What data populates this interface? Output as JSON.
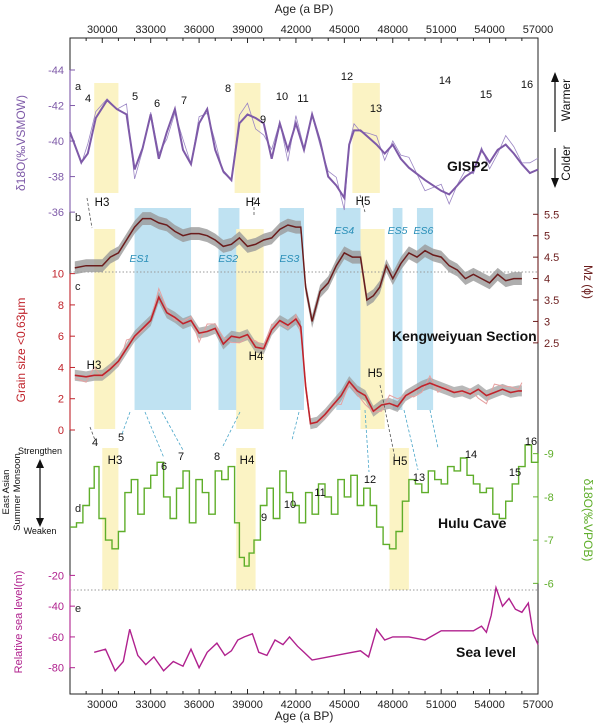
{
  "chart_data": {
    "type": "line",
    "age_axis": {
      "label": "Age (a BP)",
      "range": [
        28000,
        57000
      ],
      "ticks": [
        30000,
        33000,
        36000,
        39000,
        42000,
        45000,
        48000,
        51000,
        54000,
        57000
      ],
      "tick_labels": [
        "30000",
        "33000",
        "36000",
        "39000",
        "42000",
        "45000",
        "48000",
        "51000",
        "54000",
        "57000"
      ]
    },
    "shaded_intervals": {
      "heinrich": [
        {
          "label": "H3",
          "panel_top": [
            29500,
            31000
          ],
          "panel_mid": [
            29500,
            30800
          ],
          "panel_d": [
            30000,
            31000
          ]
        },
        {
          "label": "H4",
          "panel_top": [
            38200,
            39800
          ],
          "panel_mid": [
            38300,
            40000
          ],
          "panel_d": [
            38300,
            39500
          ]
        },
        {
          "label": "H5",
          "panel_top": [
            45500,
            47200
          ],
          "panel_mid": [
            46000,
            47500
          ],
          "panel_d": [
            47800,
            49000
          ]
        }
      ],
      "es": [
        {
          "label": "ES1",
          "range": [
            32000,
            35500
          ]
        },
        {
          "label": "ES2",
          "range": [
            37200,
            38500
          ]
        },
        {
          "label": "ES3",
          "range": [
            41000,
            42500
          ]
        },
        {
          "label": "ES4",
          "range": [
            44500,
            46000
          ]
        },
        {
          "label": "ES5",
          "range": [
            48000,
            48600
          ]
        },
        {
          "label": "ES6",
          "range": [
            49500,
            50500
          ]
        }
      ]
    },
    "panels": [
      {
        "id": "a",
        "name": "GISP2",
        "ylabel": "δ18O(‰VSMOW)",
        "yticks": [
          "-36",
          "-38",
          "-40",
          "-42",
          "-44"
        ],
        "ylim": [
          -44,
          -35.5
        ],
        "inverted": true,
        "right_arrow_labels": [
          "Warmer",
          "Colder"
        ],
        "events": [
          "4",
          "5",
          "6",
          "7",
          "8",
          "9",
          "10",
          "11",
          "12",
          "13",
          "14",
          "15",
          "16"
        ],
        "series_smooth": {
          "x": [
            28000,
            28700,
            29100,
            29600,
            30300,
            30900,
            31500,
            32000,
            32500,
            33000,
            33500,
            34000,
            34500,
            35000,
            35500,
            36000,
            36500,
            37000,
            37500,
            38000,
            38500,
            39000,
            39500,
            40000,
            40500,
            41000,
            41500,
            42000,
            42500,
            43000,
            43500,
            44000,
            44500,
            45000,
            45300,
            45600,
            46000,
            46500,
            47000,
            47500,
            48000,
            48500,
            49000,
            50000,
            51000,
            51500,
            52000,
            52500,
            53000,
            53500,
            54000,
            54500,
            55000,
            55500,
            56000,
            56500,
            57000
          ],
          "y": [
            -40.5,
            -38.8,
            -39.3,
            -41.3,
            -42.3,
            -41.8,
            -41.5,
            -38.4,
            -39.6,
            -41.5,
            -39.0,
            -40.5,
            -41.8,
            -39.5,
            -38.7,
            -41.0,
            -41.8,
            -39.5,
            -38.3,
            -37.8,
            -41.0,
            -41.5,
            -41.3,
            -41.0,
            -39.0,
            -41.0,
            -39.5,
            -41.0,
            -39.5,
            -41.5,
            -40.0,
            -38.0,
            -37.5,
            -36.8,
            -39.8,
            -40.6,
            -40.6,
            -40.2,
            -39.8,
            -39.3,
            -39.8,
            -39.0,
            -38.5,
            -37.8,
            -37.2,
            -37.0,
            -37.5,
            -38.0,
            -38.3,
            -39.5,
            -38.8,
            -39.5,
            -39.8,
            -39.3,
            -38.7,
            -38.2,
            -38.4
          ]
        }
      },
      {
        "id": "b",
        "name": "Kengweiyuan Section",
        "ylabel_right": "Mz (ϕ)",
        "yticks_right": [
          "2.5",
          "3",
          "3.5",
          "4",
          "4.5",
          "5",
          "5.5"
        ],
        "ylim": [
          2.1,
          5.6
        ],
        "series": {
          "x": [
            28300,
            29000,
            29500,
            30000,
            30500,
            31000,
            31500,
            32000,
            32500,
            33000,
            33500,
            34000,
            34500,
            35000,
            35500,
            36000,
            36500,
            37000,
            37500,
            38000,
            38500,
            39000,
            39500,
            40000,
            40500,
            41000,
            41500,
            42000,
            42300,
            42600,
            43000,
            43500,
            44000,
            44500,
            45000,
            45500,
            46000,
            46400,
            46800,
            47200,
            47600,
            48000,
            48500,
            49000,
            49500,
            50000,
            50500,
            51000,
            51500,
            52000,
            52500,
            53000,
            53500,
            54000,
            54500,
            55000,
            55500,
            56000
          ],
          "y": [
            4.25,
            4.3,
            4.3,
            4.3,
            4.5,
            4.6,
            4.9,
            5.2,
            5.4,
            5.4,
            5.3,
            5.25,
            5.1,
            5.0,
            5.05,
            5.05,
            5.0,
            4.9,
            4.75,
            4.8,
            4.95,
            4.75,
            4.8,
            4.9,
            4.95,
            5.15,
            5.25,
            5.2,
            5.2,
            3.8,
            3.0,
            3.7,
            3.9,
            4.3,
            4.6,
            4.5,
            4.5,
            3.5,
            3.6,
            3.8,
            4.3,
            4.0,
            4.35,
            4.6,
            4.5,
            4.65,
            4.55,
            4.5,
            4.3,
            4.2,
            4.0,
            4.1,
            4.0,
            3.9,
            4.1,
            3.95,
            4.0,
            4.0
          ]
        }
      },
      {
        "id": "c",
        "ylabel": "Grain size <0.63μm",
        "yticks": [
          "0",
          "2",
          "4",
          "6",
          "8",
          "10"
        ],
        "ylim": [
          0,
          11
        ],
        "series": {
          "x": [
            28300,
            29000,
            29500,
            30000,
            30500,
            31000,
            31500,
            32000,
            32500,
            33000,
            33500,
            34000,
            34500,
            35000,
            35500,
            36000,
            36500,
            37000,
            37500,
            38000,
            38500,
            39000,
            39500,
            40000,
            40500,
            41000,
            41500,
            42000,
            42300,
            42600,
            42900,
            43300,
            43800,
            44300,
            44800,
            45300,
            45800,
            46300,
            46800,
            47300,
            47800,
            48300,
            48800,
            49300,
            49800,
            50300,
            50800,
            51300,
            51800,
            52300,
            52800,
            53300,
            53800,
            54300,
            54800,
            55300,
            55800,
            56000
          ],
          "y": [
            3.5,
            3.4,
            3.5,
            3.5,
            3.9,
            4.4,
            5.2,
            6.0,
            6.5,
            7.0,
            8.5,
            7.5,
            7.2,
            6.8,
            7.0,
            6.2,
            6.3,
            6.5,
            5.5,
            6.0,
            5.9,
            6.1,
            5.3,
            5.2,
            6.4,
            7.0,
            6.7,
            7.1,
            6.6,
            2.8,
            0.4,
            0.5,
            1.0,
            1.6,
            2.2,
            3.1,
            2.5,
            2.2,
            1.2,
            1.6,
            1.7,
            1.5,
            2.2,
            2.5,
            2.8,
            3.0,
            2.8,
            2.6,
            2.4,
            2.5,
            2.3,
            2.6,
            2.2,
            2.4,
            2.6,
            2.4,
            2.5,
            2.5
          ]
        }
      },
      {
        "id": "d",
        "name": "Hulu Cave",
        "ylabel_right": "δ18O(‰VPOB)",
        "yticks_right": [
          "-9",
          "-8",
          "-7",
          "-6"
        ],
        "ylim": [
          -9.2,
          -5.8
        ],
        "inverted": true,
        "left_label_lines": [
          "East Asian",
          "Summer Monsoon"
        ],
        "left_arrow_labels": [
          "Strengthen",
          "Weaken"
        ],
        "events": [
          "4",
          "5",
          "6",
          "7",
          "8",
          "9",
          "10",
          "11",
          "12",
          "13",
          "14",
          "15",
          "16"
        ],
        "series": {
          "x": [
            28000,
            28400,
            28800,
            29200,
            29500,
            29800,
            30200,
            30600,
            31000,
            31400,
            31800,
            32200,
            32600,
            33000,
            33400,
            33800,
            34200,
            34600,
            35000,
            35400,
            35800,
            36200,
            36600,
            37000,
            37400,
            37800,
            38200,
            38500,
            38800,
            39100,
            39400,
            39800,
            40200,
            40600,
            41000,
            41400,
            41800,
            42200,
            42600,
            43000,
            43400,
            43800,
            44200,
            44600,
            45000,
            45400,
            45800,
            46200,
            46600,
            47000,
            47400,
            47800,
            48200,
            48600,
            49000,
            49400,
            49800,
            50200,
            50600,
            51000,
            51400,
            51800,
            52200,
            52600,
            53000,
            53400,
            53800,
            54200,
            54600,
            55000,
            55400,
            55800,
            56200,
            56600,
            57000
          ],
          "y": [
            -7.3,
            -7.4,
            -7.8,
            -8.2,
            -8.7,
            -7.5,
            -7.0,
            -6.8,
            -7.2,
            -8.1,
            -8.4,
            -7.6,
            -8.2,
            -8.5,
            -8.8,
            -8.0,
            -7.5,
            -8.2,
            -8.6,
            -7.4,
            -8.4,
            -8.1,
            -7.6,
            -8.6,
            -8.4,
            -8.7,
            -7.4,
            -6.6,
            -6.4,
            -6.7,
            -7.0,
            -7.8,
            -8.2,
            -7.5,
            -8.6,
            -8.1,
            -7.8,
            -7.4,
            -8.1,
            -7.6,
            -8.3,
            -8.0,
            -7.6,
            -8.4,
            -8.0,
            -8.5,
            -7.8,
            -8.2,
            -7.8,
            -7.3,
            -6.9,
            -6.8,
            -7.2,
            -7.9,
            -8.4,
            -8.3,
            -8.1,
            -8.6,
            -8.4,
            -8.3,
            -8.7,
            -8.6,
            -8.9,
            -8.5,
            -8.3,
            -8.1,
            -8.2,
            -7.6,
            -7.5,
            -7.9,
            -8.3,
            -8.7,
            -9.2,
            -8.8,
            -9.0
          ]
        }
      },
      {
        "id": "e",
        "name": "Sea level",
        "ylabel": "Relative sea level(m)",
        "yticks": [
          "-20",
          "-40",
          "-60",
          "-80"
        ],
        "ylim": [
          -88,
          -10
        ],
        "series": {
          "x": [
            29500,
            30200,
            30800,
            31300,
            31700,
            32200,
            32700,
            33200,
            33800,
            34400,
            35000,
            35500,
            36000,
            36500,
            37100,
            37600,
            38000,
            38400,
            38800,
            39300,
            39700,
            40200,
            40700,
            41200,
            41600,
            42100,
            42500,
            43000,
            44000,
            45000,
            46000,
            46500,
            47000,
            47500,
            48000,
            49000,
            50000,
            51000,
            52000,
            53000,
            53500,
            53800,
            54100,
            54400,
            54800,
            55200,
            55600,
            56000,
            56400,
            56700,
            57000
          ],
          "y": [
            -70,
            -68,
            -82,
            -76,
            -55,
            -72,
            -78,
            -73,
            -82,
            -76,
            -79,
            -68,
            -80,
            -70,
            -64,
            -72,
            -69,
            -62,
            -60,
            -58,
            -70,
            -72,
            -62,
            -65,
            -60,
            -66,
            -70,
            -75,
            -73,
            -71,
            -69,
            -73,
            -55,
            -62,
            -60,
            -60,
            -62,
            -56,
            -56,
            -56,
            -53,
            -57,
            -46,
            -28,
            -40,
            -35,
            -42,
            -44,
            -38,
            -58,
            -65
          ]
        }
      }
    ],
    "marker_rows": {
      "b": [
        {
          "x": 32300,
          "y": 4.4,
          "label": "ES1"
        },
        {
          "x": 37800,
          "y": 4.4,
          "label": "ES2"
        },
        {
          "x": 41600,
          "y": 4.4,
          "label": "ES3"
        },
        {
          "x": 45000,
          "y": 5.1,
          "label": "ES4"
        },
        {
          "x": 48300,
          "y": 5.1,
          "label": "ES5"
        },
        {
          "x": 49900,
          "y": 5.1,
          "label": "ES6"
        }
      ]
    }
  }
}
